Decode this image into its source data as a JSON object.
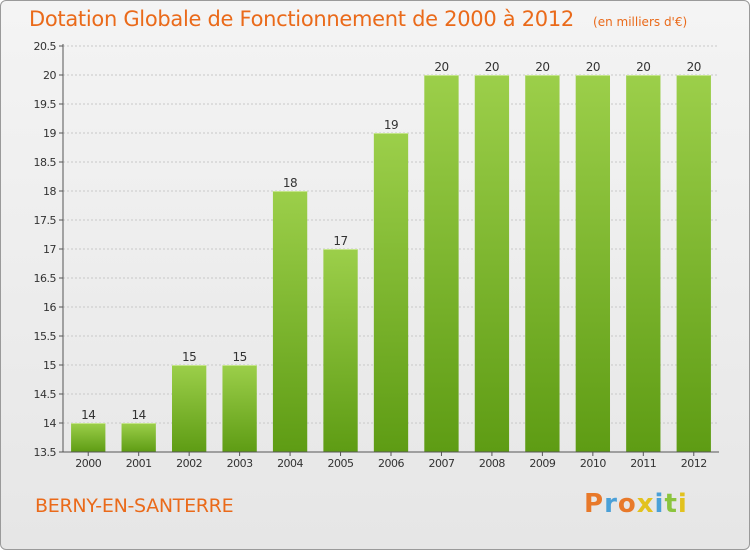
{
  "header": {
    "title": "Dotation Globale de Fonctionnement de 2000 à 2012",
    "subtitle": "(en milliers d'€)"
  },
  "footer": {
    "commune": "BERNY-EN-SANTERRE",
    "logo": "Proxiti",
    "logo_colors": [
      "#e8792a",
      "#4aa0d8",
      "#e8792a",
      "#e2c21e",
      "#4aa0d8",
      "#8bc43d",
      "#e2c21e"
    ]
  },
  "colors": {
    "title": "#ea6a1a",
    "bar_top": "#9ccf4a",
    "bar_bottom": "#5e9c14",
    "grid": "#c8c8c8",
    "axis_text": "#333333"
  },
  "chart_data": {
    "type": "bar",
    "title": "Dotation Globale de Fonctionnement de 2000 à 2012",
    "subtitle": "(en milliers d'€)",
    "categories": [
      "2000",
      "2001",
      "2002",
      "2003",
      "2004",
      "2005",
      "2006",
      "2007",
      "2008",
      "2009",
      "2010",
      "2011",
      "2012"
    ],
    "values": [
      14,
      14,
      15,
      15,
      18,
      17,
      19,
      20,
      20,
      20,
      20,
      20,
      20
    ],
    "data_labels": [
      "14",
      "14",
      "15",
      "15",
      "18",
      "17",
      "19",
      "20",
      "20",
      "20",
      "20",
      "20",
      "20"
    ],
    "ylim": [
      13.5,
      20.5
    ],
    "yticks": [
      "13.5",
      "14",
      "14.5",
      "15",
      "15.5",
      "16",
      "16.5",
      "17",
      "17.5",
      "18",
      "18.5",
      "19",
      "19.5",
      "20",
      "20.5"
    ],
    "xlabel": "",
    "ylabel": "",
    "grid": true,
    "legend": "none"
  }
}
